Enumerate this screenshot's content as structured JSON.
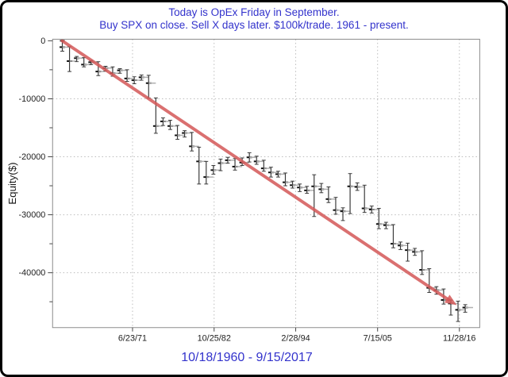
{
  "panel": {
    "background": "#ffffff",
    "border_color": "#000000"
  },
  "chart_data": {
    "type": "line",
    "subtype": "equity-curve-step-line-with-trade-range-bars",
    "title_line1": "Today is OpEx Friday in September.",
    "title_line2": "Buy SPX on close. Sell X days later. $100k/trade. 1961 - present.",
    "title_color": "#3333cc",
    "ylabel": "Equity($)",
    "xlabel": "10/18/1960 - 9/15/2017",
    "xlabel_color": "#3333cc",
    "x_ticks": [
      "6/23/71",
      "10/25/82",
      "2/28/94",
      "7/15/05",
      "11/28/16"
    ],
    "y_ticks": [
      0,
      -10000,
      -20000,
      -30000,
      -40000
    ],
    "y_minor_ticks": [
      -5000,
      -15000,
      -25000,
      -35000,
      -45000
    ],
    "ylim": [
      -49500,
      300
    ],
    "grid": "dotted gridlines at major y ticks (except 0) and at x date ticks",
    "legend": "none",
    "series": [
      {
        "name": "equity-curve",
        "bar_color": "#3a3a3a",
        "close_tick_color": "#111111",
        "shelf_color": "#b0b0b0",
        "points_format": [
          "year",
          "close_equity",
          "trade_low",
          "trade_high"
        ],
        "points": [
          [
            1961,
            -1100,
            -1800,
            0
          ],
          [
            1962,
            -3500,
            -5300,
            -1000
          ],
          [
            1963,
            -3000,
            -3600,
            -2700
          ],
          [
            1964,
            -4100,
            -4500,
            -2900
          ],
          [
            1965,
            -3700,
            -4100,
            -3400
          ],
          [
            1966,
            -5300,
            -6000,
            -3600
          ],
          [
            1967,
            -4700,
            -5200,
            -4400
          ],
          [
            1968,
            -5600,
            -6100,
            -4500
          ],
          [
            1969,
            -5100,
            -5600,
            -4800
          ],
          [
            1970,
            -6500,
            -7000,
            -5000
          ],
          [
            1971,
            -6800,
            -7400,
            -6200
          ],
          [
            1972,
            -6300,
            -6800,
            -5900
          ],
          [
            1973,
            -7300,
            -9850,
            -5950
          ],
          [
            1974,
            -14700,
            -15950,
            -9850
          ],
          [
            1975,
            -13900,
            -14600,
            -13300
          ],
          [
            1976,
            -14700,
            -15300,
            -13700
          ],
          [
            1977,
            -16300,
            -17000,
            -14600
          ],
          [
            1978,
            -15900,
            -16600,
            -15500
          ],
          [
            1979,
            -18200,
            -19000,
            -15800
          ],
          [
            1980,
            -20800,
            -24700,
            -18350
          ],
          [
            1981,
            -23500,
            -24700,
            -20800
          ],
          [
            1982,
            -22300,
            -23000,
            -21500
          ],
          [
            1983,
            -21100,
            -22400,
            -20400
          ],
          [
            1984,
            -20600,
            -21100,
            -20100
          ],
          [
            1985,
            -21700,
            -22300,
            -20300
          ],
          [
            1986,
            -21000,
            -21500,
            -20200
          ],
          [
            1987,
            -20100,
            -20900,
            -19300
          ],
          [
            1988,
            -20800,
            -21300,
            -19900
          ],
          [
            1989,
            -22000,
            -22500,
            -20600
          ],
          [
            1990,
            -22700,
            -23500,
            -21800
          ],
          [
            1991,
            -23000,
            -23500,
            -22500
          ],
          [
            1992,
            -24400,
            -25000,
            -22800
          ],
          [
            1993,
            -24900,
            -25400,
            -24200
          ],
          [
            1994,
            -25300,
            -26000,
            -24700
          ],
          [
            1995,
            -25800,
            -26300,
            -25100
          ],
          [
            1996,
            -25100,
            -30300,
            -23100
          ],
          [
            1997,
            -25600,
            -26200,
            -24600
          ],
          [
            1998,
            -27300,
            -27900,
            -25200
          ],
          [
            1999,
            -29200,
            -29900,
            -27000
          ],
          [
            2000,
            -29400,
            -31000,
            -28800
          ],
          [
            2001,
            -25100,
            -29800,
            -22900
          ],
          [
            2002,
            -25200,
            -25800,
            -24500
          ],
          [
            2003,
            -28900,
            -29600,
            -24900
          ],
          [
            2004,
            -29100,
            -29700,
            -28500
          ],
          [
            2005,
            -31600,
            -32400,
            -28900
          ],
          [
            2006,
            -31800,
            -32400,
            -31300
          ],
          [
            2007,
            -35000,
            -35700,
            -31700
          ],
          [
            2008,
            -35300,
            -36000,
            -34700
          ],
          [
            2009,
            -36100,
            -38000,
            -34900
          ],
          [
            2010,
            -36400,
            -37000,
            -35800
          ],
          [
            2011,
            -39500,
            -40300,
            -36200
          ],
          [
            2012,
            -42600,
            -43400,
            -39300
          ],
          [
            2013,
            -43000,
            -43700,
            -42400
          ],
          [
            2014,
            -44700,
            -45400,
            -42800
          ],
          [
            2015,
            -45300,
            -47300,
            -44700
          ],
          [
            2016,
            -46400,
            -48400,
            -44900
          ],
          [
            2017,
            -46000,
            -46800,
            -45500
          ]
        ]
      }
    ],
    "annotations": [
      {
        "name": "trend-arrow",
        "shape": "straight arrow, upper-left to lower-right",
        "color": "#d45858",
        "from": {
          "year": 1961.7,
          "equity": 0
        },
        "to": {
          "year": 2016.55,
          "equity": -45600
        }
      }
    ]
  }
}
